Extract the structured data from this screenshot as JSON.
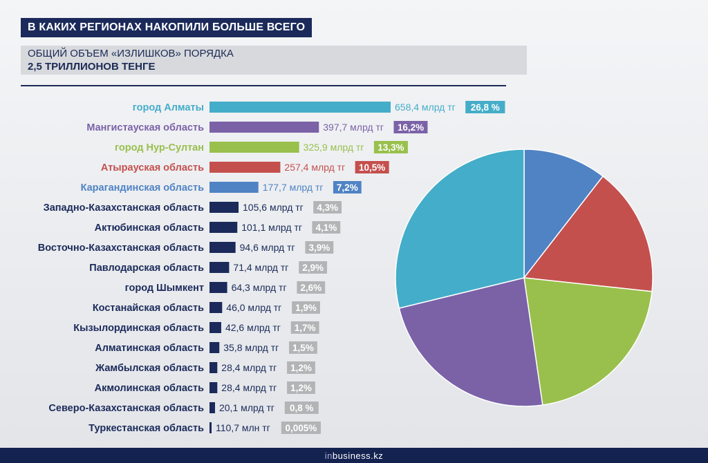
{
  "header": {
    "title": "В КАКИХ РЕГИОНАХ НАКОПИЛИ БОЛЬШЕ ВСЕГО",
    "subtitle_line1": "ОБЩИЙ ОБЪЕМ «ИЗЛИШКОВ» ПОРЯДКА",
    "subtitle_line2": "2,5 ТРИЛЛИОНОВ ТЕНГЕ"
  },
  "footer": {
    "logo_prefix": "in",
    "logo_rest": "business.kz"
  },
  "colors": {
    "navy": "#1b2a5a",
    "gray_badge": "#b3b4b6",
    "almaty": "#44adc9",
    "mangistau": "#7b62a7",
    "nursultan": "#99c04c",
    "atyrau": "#c4504e",
    "karaganda": "#4f83c4"
  },
  "chart_data": [
    {
      "type": "bar",
      "orientation": "horizontal",
      "units_note": "млрд тг",
      "categories": [
        "город Алматы",
        "Мангистауская область",
        "город Нур-Султан",
        "Атырауская область",
        "Карагандинская область",
        "Западно-Казахстанская область",
        "Актюбинская область",
        "Восточно-Казахстанская область",
        "Павлодарская область",
        "город Шымкент",
        "Костанайская область",
        "Кызылординская область",
        "Алматинская область",
        "Жамбылская область",
        "Акмолинская область",
        "Северо-Казахстанская область",
        "Туркестанская область"
      ],
      "values": [
        658.4,
        397.7,
        325.9,
        257.4,
        177.7,
        105.6,
        101.1,
        94.6,
        71.4,
        64.3,
        46.0,
        42.6,
        35.8,
        28.4,
        28.4,
        20.1,
        0.1107
      ],
      "value_labels": [
        "658,4 млрд тг",
        "397,7 млрд тг",
        "325,9 млрд тг",
        "257,4 млрд тг",
        "177,7 млрд тг",
        "105,6 млрд тг",
        "101,1 млрд тг",
        "94,6 млрд тг",
        "71,4 млрд тг",
        "64,3 млрд тг",
        "46,0 млрд тг",
        "42,6 млрд тг",
        "35,8 млрд тг",
        "28,4 млрд тг",
        "28,4 млрд тг",
        "20,1 млрд тг",
        "110,7 млн тг"
      ],
      "percent_labels": [
        "26,8 %",
        "16,2%",
        "13,3%",
        "10,5%",
        "7,2%",
        "4,3%",
        "4,1%",
        "3,9%",
        "2,9%",
        "2,6%",
        "1,9%",
        "1,7%",
        "1,5%",
        "1,2%",
        "1,2%",
        "0,8 %",
        "0,005%"
      ],
      "bar_colors": [
        "#44adc9",
        "#7b62a7",
        "#99c04c",
        "#c4504e",
        "#4f83c4",
        "#1b2a5a",
        "#1b2a5a",
        "#1b2a5a",
        "#1b2a5a",
        "#1b2a5a",
        "#1b2a5a",
        "#1b2a5a",
        "#1b2a5a",
        "#1b2a5a",
        "#1b2a5a",
        "#1b2a5a",
        "#1b2a5a"
      ],
      "label_colors": [
        "#44adc9",
        "#7b62a7",
        "#99c04c",
        "#c4504e",
        "#4f83c4",
        "#1b2a5a",
        "#1b2a5a",
        "#1b2a5a",
        "#1b2a5a",
        "#1b2a5a",
        "#1b2a5a",
        "#1b2a5a",
        "#1b2a5a",
        "#1b2a5a",
        "#1b2a5a",
        "#1b2a5a",
        "#1b2a5a"
      ],
      "badge_colors": [
        "#44adc9",
        "#7b62a7",
        "#99c04c",
        "#c4504e",
        "#4f83c4",
        "#b3b4b6",
        "#b3b4b6",
        "#b3b4b6",
        "#b3b4b6",
        "#b3b4b6",
        "#b3b4b6",
        "#b3b4b6",
        "#b3b4b6",
        "#b3b4b6",
        "#b3b4b6",
        "#b3b4b6",
        "#b3b4b6"
      ],
      "value_text_colors": [
        "#44adc9",
        "#7b62a7",
        "#99c04c",
        "#c4504e",
        "#4f83c4",
        "#1b2a5a",
        "#1b2a5a",
        "#1b2a5a",
        "#1b2a5a",
        "#1b2a5a",
        "#1b2a5a",
        "#1b2a5a",
        "#1b2a5a",
        "#1b2a5a",
        "#1b2a5a",
        "#1b2a5a",
        "#1b2a5a"
      ]
    },
    {
      "type": "pie",
      "start": "12 o'clock, clockwise",
      "values": [
        10.5,
        16.2,
        21.0,
        23.5,
        28.8
      ],
      "colors": [
        "#4f83c4",
        "#c4504e",
        "#99c04c",
        "#7b62a7",
        "#44adc9"
      ]
    }
  ]
}
